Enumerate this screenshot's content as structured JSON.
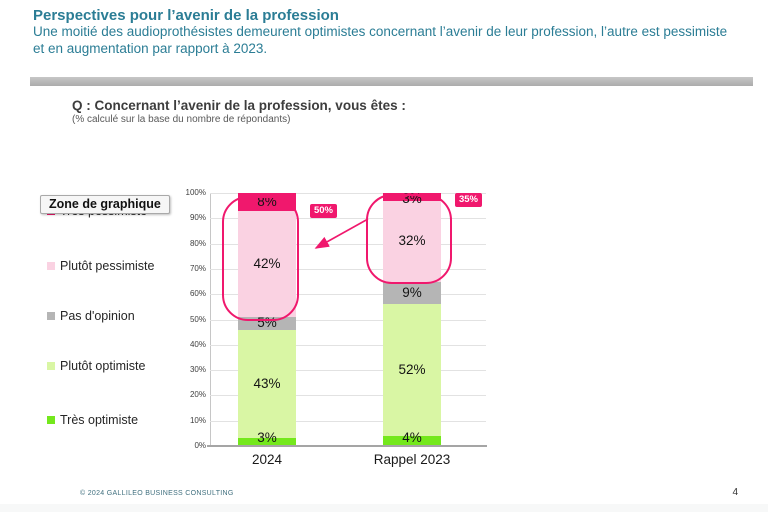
{
  "page": {
    "title": "Perspectives pour l’avenir de la profession",
    "subtitle": "Une moitié des audioprothésistes demeurent optimistes concernant l’avenir de leur profession, l’autre est pessimiste et en augmentation par rapport à 2023.",
    "question": "Q : Concernant l’avenir de la profession, vous êtes :",
    "question_note": "(% calculé sur la base du nombre de répondants)",
    "tooltip": "Zone de graphique",
    "footer_copyright": "© 2024 GALLILEO BUSINESS CONSULTING",
    "page_number": "4"
  },
  "colors": {
    "title_teal": "#2b7d95",
    "accent_pink": "#f0186d",
    "tres_pessimiste": "#f0186d",
    "plutot_pessimiste": "#fad2e2",
    "pas_opinion": "#b5b5b5",
    "plutot_optimiste": "#d9f6a4",
    "tres_optimiste": "#74e81c"
  },
  "legend": {
    "items": [
      {
        "label": "Très pessimiste",
        "color": "#f0186d"
      },
      {
        "label": "Plutôt pessimiste",
        "color": "#fad2e2"
      },
      {
        "label": "Pas d'opinion",
        "color": "#b5b5b5"
      },
      {
        "label": "Plutôt optimiste",
        "color": "#d9f6a4"
      },
      {
        "label": "Très optimiste",
        "color": "#74e81c"
      }
    ]
  },
  "chart_data": {
    "type": "stacked-bar",
    "title": "Q : Concernant l’avenir de la profession, vous êtes :",
    "categories": [
      "2024",
      "Rappel 2023"
    ],
    "series": [
      {
        "name": "Très optimiste",
        "color": "#74e81c",
        "values": [
          3,
          4
        ],
        "labels": [
          "3%",
          "4%"
        ]
      },
      {
        "name": "Plutôt optimiste",
        "color": "#d9f6a4",
        "values": [
          43,
          52
        ],
        "labels": [
          "43%",
          "52%"
        ]
      },
      {
        "name": "Pas d'opinion",
        "color": "#b5b5b5",
        "values": [
          5,
          9
        ],
        "labels": [
          "5%",
          "9%"
        ]
      },
      {
        "name": "Plutôt pessimiste",
        "color": "#fad2e2",
        "values": [
          42,
          32
        ],
        "labels": [
          "42%",
          "32%"
        ]
      },
      {
        "name": "Très pessimiste",
        "color": "#f0186d",
        "values": [
          8,
          3
        ],
        "labels": [
          "8%",
          "3%"
        ]
      }
    ],
    "ylim": [
      0,
      100
    ],
    "yticks": [
      "100%",
      "90%",
      "80%",
      "70%",
      "60%",
      "50%",
      "40%",
      "30%",
      "20%",
      "10%",
      "0%"
    ],
    "grid": true,
    "legend_position": "left",
    "annotations": [
      {
        "label": "50%",
        "category": "2024"
      },
      {
        "label": "35%",
        "category": "Rappel 2023"
      }
    ]
  }
}
